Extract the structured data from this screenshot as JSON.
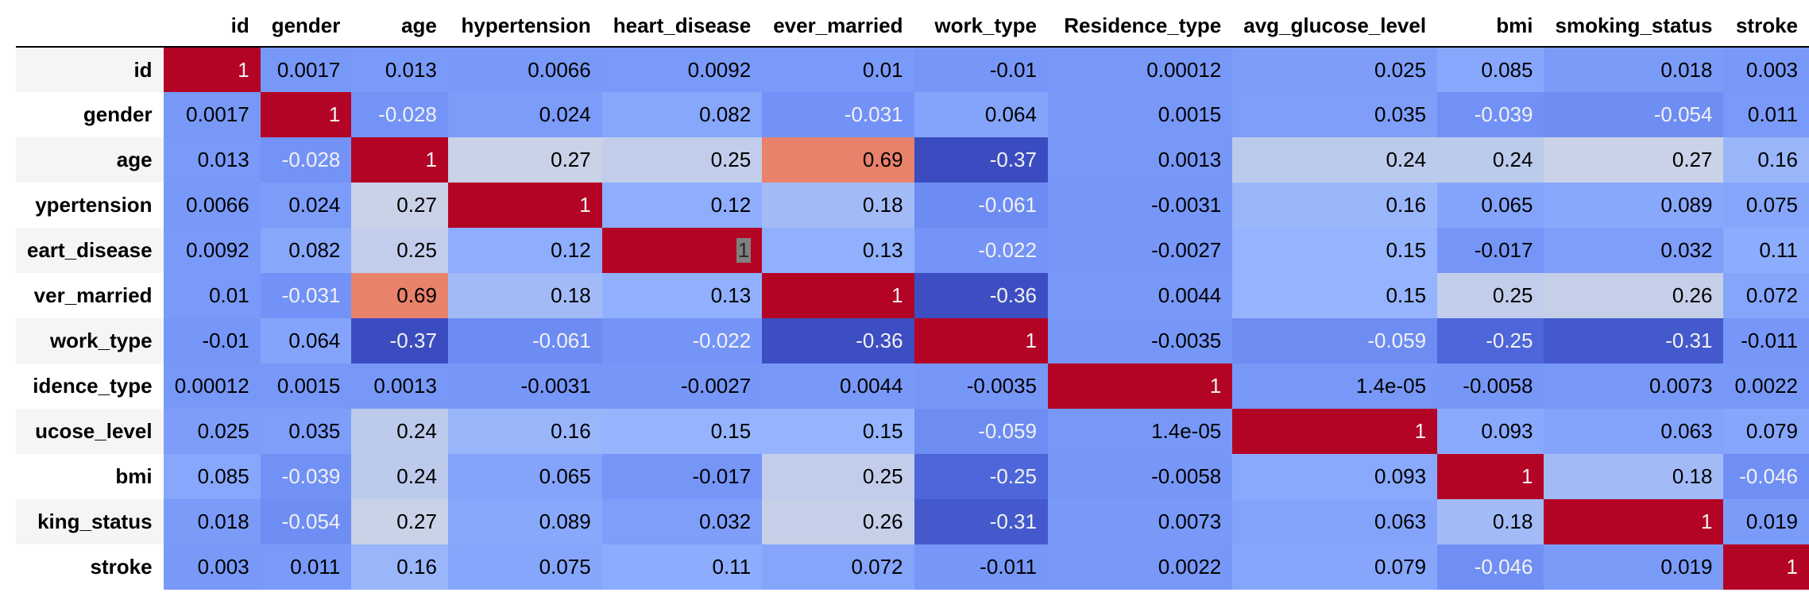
{
  "chart_data": {
    "type": "heatmap",
    "colormap": "coolwarm",
    "vmin": -0.37,
    "vmax": 1,
    "columns": [
      "id",
      "gender",
      "age",
      "hypertension",
      "heart_disease",
      "ever_married",
      "work_type",
      "Residence_type",
      "avg_glucose_level",
      "bmi",
      "smoking_status",
      "stroke"
    ],
    "row_labels": [
      "id",
      "gender",
      "age",
      "ypertension",
      "eart_disease",
      "ver_married",
      "work_type",
      "idence_type",
      "ucose_level",
      "bmi",
      "king_status",
      "stroke"
    ],
    "rows": [
      {
        "label": "id",
        "values": [
          "1",
          "0.0017",
          "0.013",
          "0.0066",
          "0.0092",
          "0.01",
          "-0.01",
          "0.00012",
          "0.025",
          "0.085",
          "0.018",
          "0.003"
        ]
      },
      {
        "label": "gender",
        "values": [
          "0.0017",
          "1",
          "-0.028",
          "0.024",
          "0.082",
          "-0.031",
          "0.064",
          "0.0015",
          "0.035",
          "-0.039",
          "-0.054",
          "0.011"
        ]
      },
      {
        "label": "age",
        "values": [
          "0.013",
          "-0.028",
          "1",
          "0.27",
          "0.25",
          "0.69",
          "-0.37",
          "0.0013",
          "0.24",
          "0.24",
          "0.27",
          "0.16"
        ]
      },
      {
        "label": "hypertension",
        "values": [
          "0.0066",
          "0.024",
          "0.27",
          "1",
          "0.12",
          "0.18",
          "-0.061",
          "-0.0031",
          "0.16",
          "0.065",
          "0.089",
          "0.075"
        ]
      },
      {
        "label": "heart_disease",
        "values": [
          "0.0092",
          "0.082",
          "0.25",
          "0.12",
          "1",
          "0.13",
          "-0.022",
          "-0.0027",
          "0.15",
          "-0.017",
          "0.032",
          "0.11"
        ]
      },
      {
        "label": "ever_married",
        "values": [
          "0.01",
          "-0.031",
          "0.69",
          "0.18",
          "0.13",
          "1",
          "-0.36",
          "0.0044",
          "0.15",
          "0.25",
          "0.26",
          "0.072"
        ]
      },
      {
        "label": "work_type",
        "values": [
          "-0.01",
          "0.064",
          "-0.37",
          "-0.061",
          "-0.022",
          "-0.36",
          "1",
          "-0.0035",
          "-0.059",
          "-0.25",
          "-0.31",
          "-0.011"
        ]
      },
      {
        "label": "Residence_type",
        "values": [
          "0.00012",
          "0.0015",
          "0.0013",
          "-0.0031",
          "-0.0027",
          "0.0044",
          "-0.0035",
          "1",
          "1.4e-05",
          "-0.0058",
          "0.0073",
          "0.0022"
        ]
      },
      {
        "label": "avg_glucose_level",
        "values": [
          "0.025",
          "0.035",
          "0.24",
          "0.16",
          "0.15",
          "0.15",
          "-0.059",
          "1.4e-05",
          "1",
          "0.093",
          "0.063",
          "0.079"
        ]
      },
      {
        "label": "bmi",
        "values": [
          "0.085",
          "-0.039",
          "0.24",
          "0.065",
          "-0.017",
          "0.25",
          "-0.25",
          "-0.0058",
          "0.093",
          "1",
          "0.18",
          "-0.046"
        ]
      },
      {
        "label": "smoking_status",
        "values": [
          "0.018",
          "-0.054",
          "0.27",
          "0.089",
          "0.032",
          "0.26",
          "-0.31",
          "0.0073",
          "0.063",
          "0.18",
          "1",
          "0.019"
        ]
      },
      {
        "label": "stroke",
        "values": [
          "0.003",
          "0.011",
          "0.16",
          "0.075",
          "0.11",
          "0.072",
          "-0.011",
          "0.0022",
          "0.079",
          "-0.046",
          "0.019",
          "1"
        ]
      }
    ],
    "selected_cell": {
      "row": 4,
      "col": 4
    }
  }
}
